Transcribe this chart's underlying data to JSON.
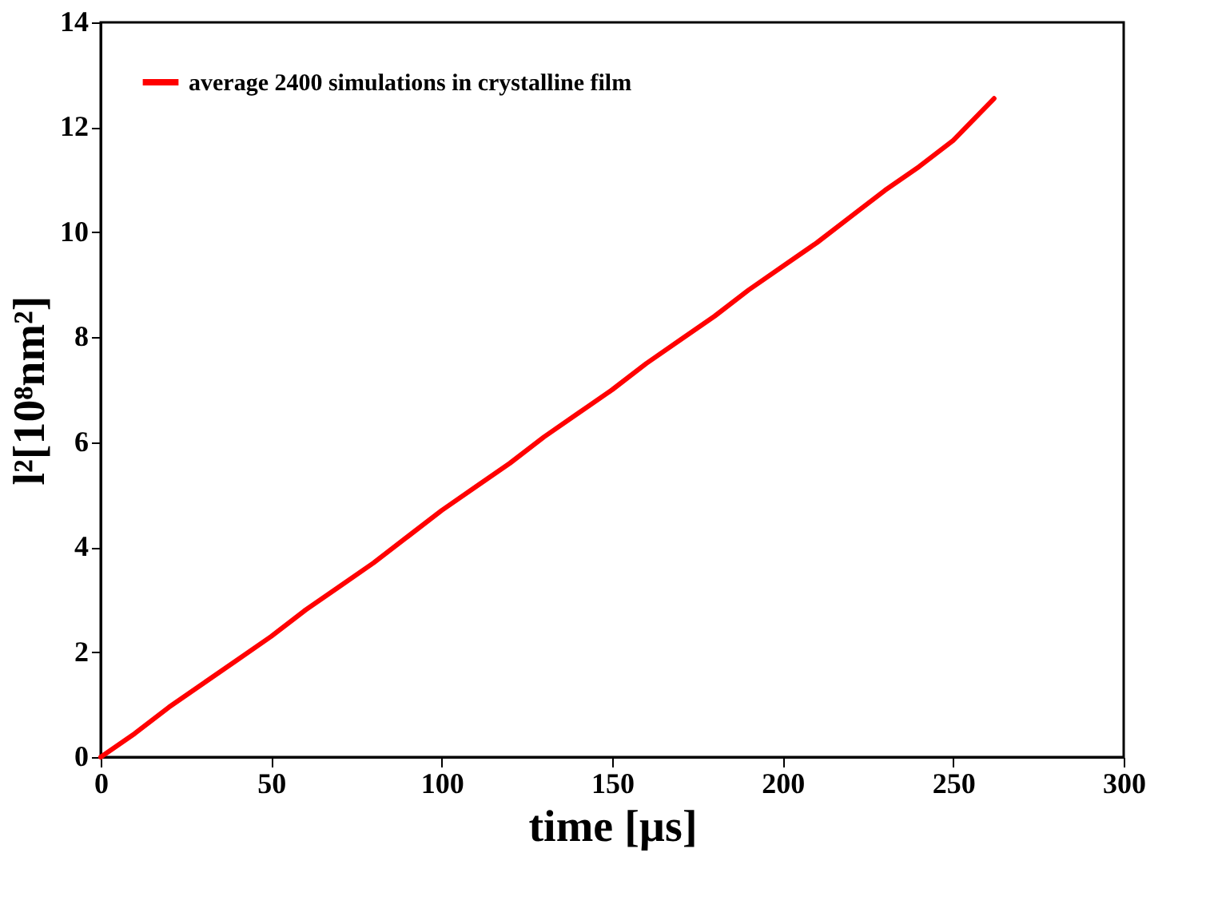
{
  "chart_data": {
    "type": "line",
    "xlabel": "time [µs]",
    "ylabel": "l²[10⁸nm²]",
    "x": [
      0,
      10,
      20,
      30,
      40,
      50,
      60,
      70,
      80,
      90,
      100,
      110,
      120,
      130,
      140,
      150,
      160,
      170,
      180,
      190,
      200,
      210,
      220,
      230,
      240,
      250,
      262
    ],
    "series": [
      {
        "name": "average 2400 simulations in crystalline film",
        "color": "#ff0000",
        "values": [
          0,
          0.45,
          0.95,
          1.4,
          1.85,
          2.3,
          2.8,
          3.25,
          3.7,
          4.2,
          4.7,
          5.15,
          5.6,
          6.1,
          6.55,
          7.0,
          7.5,
          7.95,
          8.4,
          8.9,
          9.35,
          9.8,
          10.3,
          10.8,
          11.25,
          11.75,
          12.55
        ]
      }
    ],
    "xlim": [
      0,
      300
    ],
    "xticks": [
      0,
      50,
      100,
      150,
      200,
      250,
      300
    ],
    "ylim": [
      0,
      14
    ],
    "yticks": [
      0,
      2,
      4,
      6,
      8,
      10,
      12,
      14
    ],
    "grid": false,
    "legend": "top left",
    "marker": "none",
    "line_style": "solid"
  }
}
